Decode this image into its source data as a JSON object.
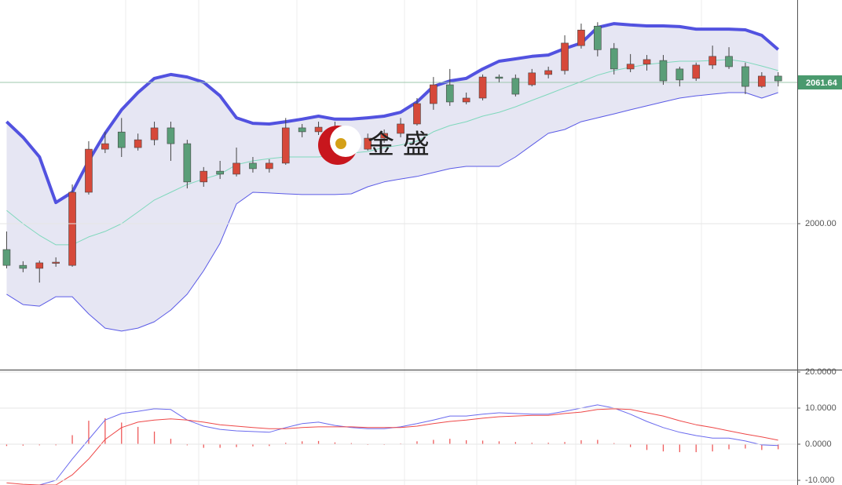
{
  "chart_data": [
    {
      "type": "candlestick",
      "ylim": [
        1936.3,
        2097.6
      ],
      "yticks": [
        {
          "value": 2000,
          "label": "2000.00"
        }
      ],
      "last_price": {
        "value": 2061.64,
        "label": "2061.64",
        "color": "#4a9a6e"
      },
      "watermark": "金 盛",
      "up_color": "#d6493a",
      "down_color": "#5a9e78",
      "open": [
        1988.7,
        1981.8,
        1980.5,
        1982.9,
        1981.8,
        2013.7,
        2032.5,
        2040.0,
        2033.2,
        2036.6,
        2041.8,
        2034.9,
        2018.2,
        2022.9,
        2021.6,
        2026.4,
        2024.0,
        2026.4,
        2041.8,
        2040.1,
        2042.1,
        2036.6,
        2032.5,
        2037.3,
        2039.4,
        2043.5,
        2052.4,
        2060.6,
        2053.1,
        2054.8,
        2064.0,
        2063.4,
        2060.6,
        2065.1,
        2066.8,
        2077.7,
        2086.2,
        2076.4,
        2067.5,
        2069.6,
        2071.2,
        2067.5,
        2063.4,
        2069.2,
        2073.0,
        2068.5,
        2059.9,
        2064.4
      ],
      "high": [
        1996.6,
        1983.6,
        1983.9,
        1985.3,
        2017.1,
        2036.0,
        2040.0,
        2046.1,
        2039.3,
        2044.5,
        2044.5,
        2036.6,
        2024.7,
        2027.4,
        2033.2,
        2029.1,
        2028.1,
        2046.1,
        2043.5,
        2044.5,
        2044.5,
        2039.3,
        2039.3,
        2041.1,
        2046.1,
        2054.8,
        2064.0,
        2067.5,
        2057.2,
        2065.1,
        2065.1,
        2065.1,
        2067.5,
        2068.5,
        2082.2,
        2087.3,
        2087.9,
        2078.8,
        2074.0,
        2073.6,
        2073.6,
        2068.5,
        2070.3,
        2077.7,
        2077.0,
        2070.3,
        2066.1,
        2066.1
      ],
      "low": [
        1980.5,
        1978.8,
        1974.3,
        1981.2,
        1981.2,
        2012.7,
        2030.8,
        2029.1,
        2031.9,
        2034.2,
        2027.4,
        2015.4,
        2016.1,
        2019.5,
        2020.6,
        2022.3,
        2022.3,
        2025.7,
        2037.7,
        2038.7,
        2034.2,
        2030.8,
        2031.9,
        2035.3,
        2037.7,
        2042.8,
        2049.7,
        2051.4,
        2052.1,
        2053.8,
        2061.7,
        2055.5,
        2059.9,
        2063.4,
        2065.1,
        2076.4,
        2073.0,
        2065.1,
        2066.1,
        2066.8,
        2060.6,
        2059.9,
        2062.3,
        2067.5,
        2067.5,
        2056.5,
        2059.3,
        2059.9
      ],
      "close": [
        1981.8,
        1980.5,
        1982.9,
        1983.2,
        2013.7,
        2032.5,
        2034.9,
        2033.2,
        2036.6,
        2041.8,
        2034.9,
        2018.2,
        2022.9,
        2021.6,
        2026.4,
        2024.0,
        2026.4,
        2041.8,
        2040.1,
        2042.1,
        2036.6,
        2034.2,
        2037.3,
        2039.4,
        2043.5,
        2052.4,
        2060.6,
        2053.1,
        2054.8,
        2064.0,
        2063.4,
        2056.5,
        2065.8,
        2066.8,
        2078.8,
        2084.5,
        2075.9,
        2067.5,
        2069.6,
        2071.6,
        2062.3,
        2062.7,
        2069.2,
        2073.0,
        2068.5,
        2059.9,
        2064.4,
        2062.3
      ],
      "bands": [
        {
          "color": "#5252e0",
          "width": 4,
          "values": [
            2044.5,
            2037.7,
            2029.1,
            2009.2,
            2013.7,
            2027.4,
            2039.4,
            2049.7,
            2057.2,
            2063.4,
            2065.1,
            2064.0,
            2061.7,
            2055.8,
            2046.2,
            2043.8,
            2043.5,
            2044.5,
            2045.6,
            2046.9,
            2045.6,
            2045.6,
            2046.2,
            2046.9,
            2048.6,
            2053.1,
            2059.9,
            2062.3,
            2063.4,
            2067.5,
            2070.9,
            2071.9,
            2073.0,
            2073.6,
            2076.4,
            2078.8,
            2085.6,
            2087.3,
            2086.7,
            2086.3,
            2086.3,
            2086.0,
            2084.9,
            2084.9,
            2084.9,
            2084.6,
            2082.2,
            2076.0
          ]
        },
        {
          "color": "#7fd8bc",
          "width": 1,
          "values": [
            2005.8,
            2000.0,
            1994.9,
            1990.8,
            1990.8,
            1994.2,
            1996.6,
            2000.0,
            2005.1,
            2010.3,
            2013.7,
            2017.1,
            2019.5,
            2021.6,
            2025.7,
            2027.4,
            2028.4,
            2029.1,
            2029.1,
            2029.1,
            2029.8,
            2030.8,
            2031.5,
            2033.2,
            2034.3,
            2036.0,
            2040.1,
            2042.8,
            2044.5,
            2046.9,
            2048.6,
            2051.0,
            2053.8,
            2056.5,
            2059.3,
            2062.0,
            2064.8,
            2066.8,
            2068.2,
            2069.5,
            2070.2,
            2070.9,
            2070.9,
            2071.2,
            2071.6,
            2070.6,
            2068.8,
            2066.8
          ]
        },
        {
          "color": "#5a5ae6",
          "width": 1,
          "values": [
            1969.2,
            1964.7,
            1964.0,
            1968.1,
            1968.1,
            1960.6,
            1954.4,
            1953.1,
            1954.4,
            1957.2,
            1962.3,
            1969.2,
            1979.5,
            1991.4,
            2008.6,
            2013.7,
            2013.4,
            2013.0,
            2012.7,
            2012.7,
            2012.7,
            2013.0,
            2016.1,
            2018.2,
            2019.5,
            2020.6,
            2022.3,
            2024.0,
            2025.0,
            2025.0,
            2025.0,
            2029.1,
            2034.3,
            2039.4,
            2041.1,
            2044.5,
            2046.2,
            2047.9,
            2049.7,
            2051.4,
            2053.1,
            2054.8,
            2055.8,
            2056.5,
            2057.2,
            2057.2,
            2054.8,
            2057.2
          ]
        }
      ],
      "band_fill": "#e6e6f3"
    },
    {
      "type": "macd",
      "ylim": [
        -11.3,
        20.65
      ],
      "yticks": [
        {
          "value": 20,
          "label": "20.0000"
        },
        {
          "value": 10,
          "label": "10.0000"
        },
        {
          "value": 0,
          "label": "0.0000"
        },
        {
          "value": -10,
          "label": "-10.000"
        }
      ],
      "series": [
        {
          "color": "#6a6aee",
          "values": [
            -12.2,
            -11.7,
            -11.3,
            -10.0,
            -4.1,
            1.3,
            6.7,
            8.5,
            9.1,
            9.8,
            9.6,
            6.7,
            5.0,
            4.1,
            3.7,
            3.5,
            3.3,
            4.6,
            5.7,
            6.1,
            5.2,
            4.6,
            4.3,
            4.3,
            4.8,
            5.7,
            6.7,
            7.8,
            7.8,
            8.3,
            8.7,
            8.5,
            8.3,
            8.3,
            9.1,
            10.0,
            10.9,
            10.0,
            8.3,
            6.3,
            4.6,
            3.3,
            2.4,
            1.7,
            1.7,
            0.9,
            -0.2,
            -0.4
          ]
        },
        {
          "color": "#ee4848",
          "values": [
            -10.7,
            -11.1,
            -11.3,
            -11.3,
            -8.5,
            -4.1,
            1.3,
            4.6,
            6.1,
            6.7,
            7.0,
            6.7,
            6.1,
            5.4,
            5.0,
            4.6,
            4.3,
            4.3,
            4.6,
            4.8,
            4.8,
            4.8,
            4.6,
            4.6,
            4.6,
            5.0,
            5.7,
            6.3,
            6.7,
            7.2,
            7.6,
            7.8,
            8.0,
            8.0,
            8.5,
            8.9,
            9.6,
            9.8,
            9.6,
            8.7,
            7.8,
            6.5,
            5.4,
            4.6,
            3.7,
            2.8,
            2.0,
            1.1
          ]
        }
      ],
      "histogram": {
        "color": "#ee5a5a",
        "values": [
          -0.5,
          -0.4,
          -0.3,
          -0.3,
          2.5,
          6.5,
          7.2,
          6.0,
          4.8,
          3.5,
          1.5,
          -0.3,
          -1.0,
          -1.0,
          -0.8,
          -0.6,
          -0.5,
          0.4,
          0.8,
          0.9,
          0.5,
          0.3,
          -0.2,
          -0.2,
          0.2,
          0.8,
          1.2,
          1.5,
          1.1,
          1.0,
          0.8,
          0.6,
          0.4,
          0.4,
          0.6,
          1.1,
          1.2,
          0.3,
          -0.8,
          -1.6,
          -2.0,
          -2.2,
          -2.2,
          -2.0,
          -1.4,
          -1.2,
          -1.6,
          -1.4
        ]
      }
    }
  ]
}
